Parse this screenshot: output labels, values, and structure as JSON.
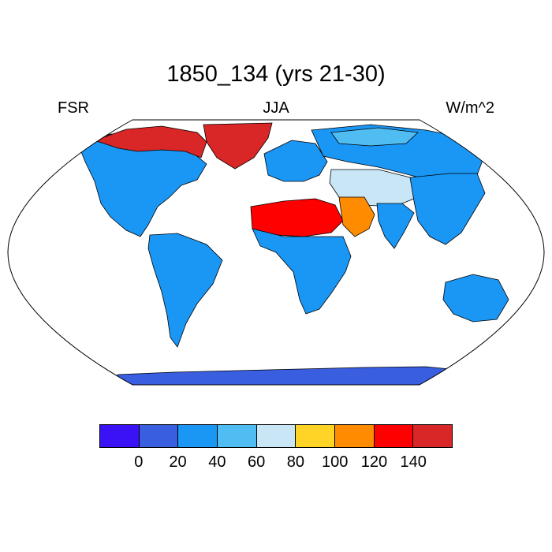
{
  "title": "1850_134 (yrs 21-30)",
  "left_label": "FSR",
  "center_label": "JJA",
  "right_label": "W/m^2",
  "projection": "Robinson",
  "colorbar": {
    "colors": [
      "#3a12f5",
      "#3a5ee0",
      "#1a96f5",
      "#4fbdf2",
      "#c9e6f7",
      "#ffd426",
      "#ff8c00",
      "#ff0000",
      "#d92626"
    ],
    "tick_labels": [
      "0",
      "20",
      "40",
      "60",
      "80",
      "100",
      "120",
      "140"
    ]
  },
  "regions": [
    {
      "name": "north-america",
      "level": 2
    },
    {
      "name": "canada-arctic",
      "level": 8
    },
    {
      "name": "greenland",
      "level": 8
    },
    {
      "name": "south-america",
      "level": 2
    },
    {
      "name": "europe",
      "level": 2
    },
    {
      "name": "russia",
      "level": 2
    },
    {
      "name": "siberia-coast",
      "level": 3
    },
    {
      "name": "central-asia",
      "level": 4
    },
    {
      "name": "sahara",
      "level": 7
    },
    {
      "name": "arabia",
      "level": 6
    },
    {
      "name": "africa",
      "level": 2
    },
    {
      "name": "india",
      "level": 2
    },
    {
      "name": "east-asia",
      "level": 2
    },
    {
      "name": "australia",
      "level": 2
    },
    {
      "name": "antarctica",
      "level": 1
    }
  ]
}
